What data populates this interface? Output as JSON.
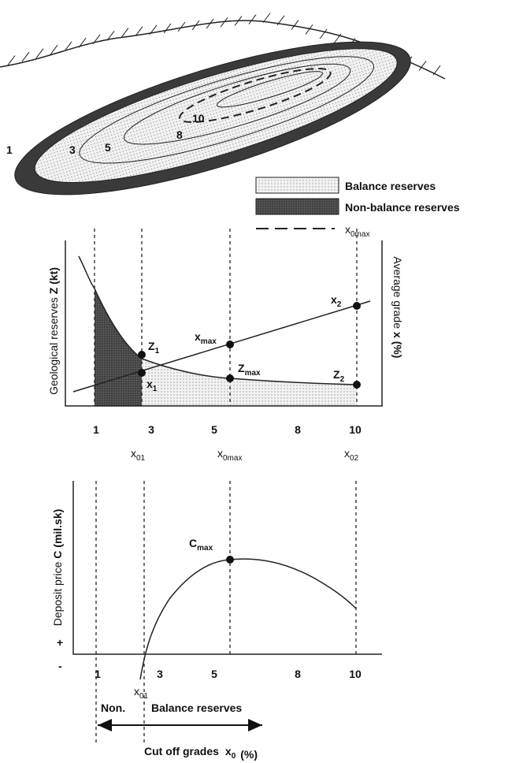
{
  "ore_body": {
    "contour_labels": [
      "1",
      "3",
      "5",
      "8",
      "10"
    ]
  },
  "legend": {
    "balance": "Balance reserves",
    "non_balance": "Non-balance reserves",
    "cutoff": {
      "main": "x",
      "sub": "0max"
    }
  },
  "reserves_chart": {
    "y_label_left": [
      "Geological reserves",
      "Z (kt)"
    ],
    "y_label_right": [
      "Average grade",
      "x (%)"
    ],
    "points": {
      "z1": {
        "main": "Z",
        "sub": "1"
      },
      "x1": {
        "main": "x",
        "sub": "1"
      },
      "xmax": {
        "main": "x",
        "sub": "max"
      },
      "zmax": {
        "main": "Z",
        "sub": "max"
      },
      "x2": {
        "main": "x",
        "sub": "2"
      },
      "z2": {
        "main": "Z",
        "sub": "2"
      }
    },
    "ticks": [
      "1",
      "3",
      "5",
      "8",
      "10"
    ],
    "markers": [
      {
        "main": "x",
        "sub": "01"
      },
      {
        "main": "x",
        "sub": "0max"
      },
      {
        "main": "x",
        "sub": "02"
      }
    ]
  },
  "price_chart": {
    "y_label": [
      "Deposit price",
      "C (mil.sk)"
    ],
    "plus": "+",
    "minus": "-",
    "cmax": {
      "main": "C",
      "sub": "max"
    },
    "ticks": [
      "1",
      "3",
      "5",
      "8",
      "10"
    ],
    "marker": {
      "main": "x",
      "sub": "01"
    },
    "non": "Non.",
    "balance": "Balance reserves",
    "x_label": [
      "Cut off grades",
      {
        "main": "x",
        "sub": "0"
      },
      "(%)"
    ]
  }
}
